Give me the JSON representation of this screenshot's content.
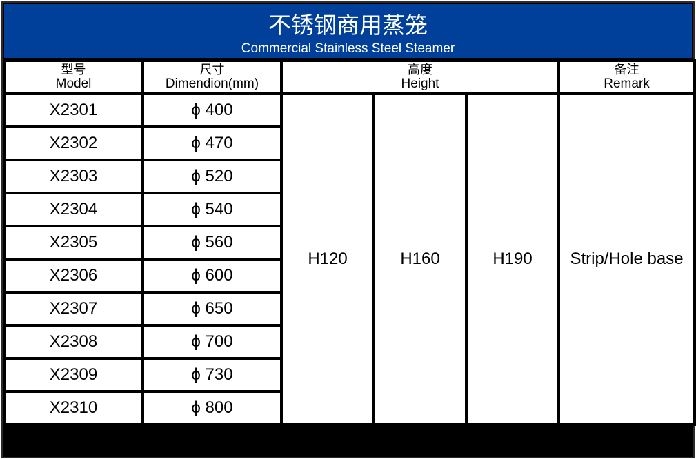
{
  "title": {
    "zh": "不锈钢商用蒸笼",
    "en": "Commercial Stainless Steel Steamer"
  },
  "colors": {
    "banner": "#00409a",
    "border": "#000000"
  },
  "headers": [
    {
      "zh": "型号",
      "en": "Model"
    },
    {
      "zh": "尺寸",
      "en": "Dimendion(mm)"
    },
    {
      "zh": "高度",
      "en": "Height"
    },
    {
      "zh": "备注",
      "en": "Remark"
    }
  ],
  "rows": [
    {
      "model": "X2301",
      "dim": "ϕ 400"
    },
    {
      "model": "X2302",
      "dim": "ϕ 470"
    },
    {
      "model": "X2303",
      "dim": "ϕ 520"
    },
    {
      "model": "X2304",
      "dim": "ϕ 540"
    },
    {
      "model": "X2305",
      "dim": "ϕ 560"
    },
    {
      "model": "X2306",
      "dim": "ϕ 600"
    },
    {
      "model": "X2307",
      "dim": "ϕ 650"
    },
    {
      "model": "X2308",
      "dim": "ϕ 700"
    },
    {
      "model": "X2309",
      "dim": "ϕ 730"
    },
    {
      "model": "X2310",
      "dim": "ϕ 800"
    }
  ],
  "heights": [
    "H120",
    "H160",
    "H190"
  ],
  "remark": "Strip/Hole base"
}
